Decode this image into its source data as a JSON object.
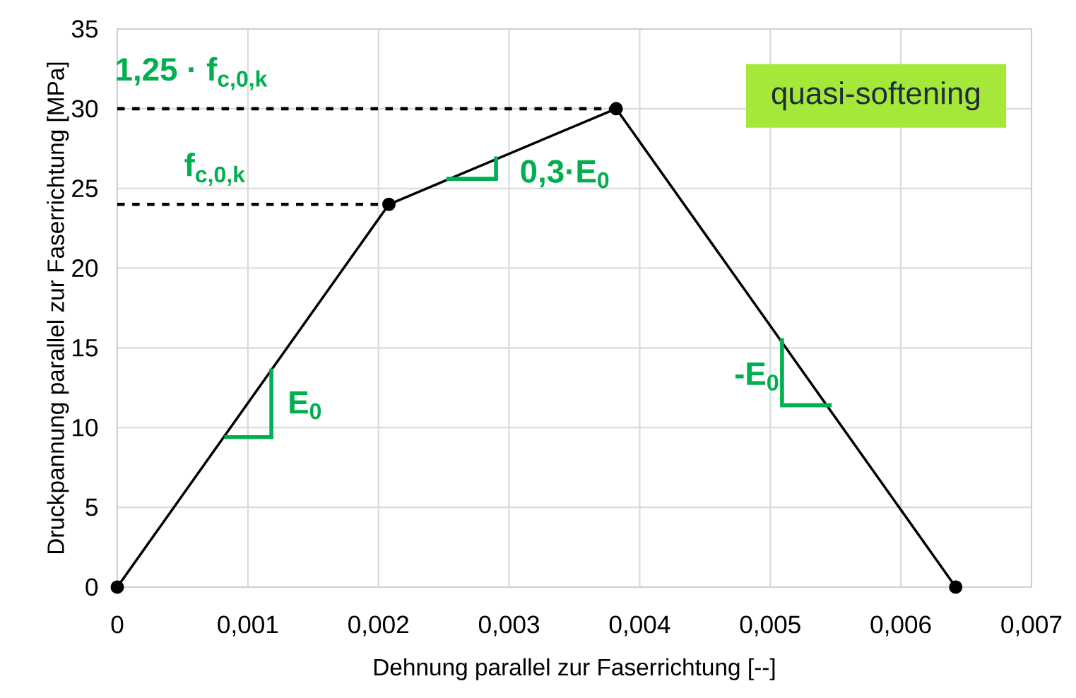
{
  "chart_data": {
    "type": "line",
    "xlabel": "Dehnung parallel zur Faserrichtung [--]",
    "ylabel": "Druckpannung parallel zur Faserrichtung   [MPa]",
    "xlim": [
      0,
      0.007
    ],
    "ylim": [
      0,
      35
    ],
    "xticks": [
      0,
      {
        "value": 0.001,
        "label": "0,001"
      },
      {
        "value": 0.002,
        "label": "0,002"
      },
      {
        "value": 0.003,
        "label": "0,003"
      },
      {
        "value": 0.004,
        "label": "0,004"
      },
      {
        "value": 0.005,
        "label": "0,005"
      },
      {
        "value": 0.006,
        "label": "0,006"
      },
      {
        "value": 0.007,
        "label": "0,007"
      }
    ],
    "yticks": [
      0,
      5,
      10,
      15,
      20,
      25,
      30,
      35
    ],
    "grid": true,
    "series": [
      {
        "type": "line",
        "color": "#000000",
        "marker": "circle",
        "line_style": "solid",
        "x": [
          0,
          0.00208,
          0.00382,
          0.00642
        ],
        "values": [
          0,
          24,
          30,
          0
        ]
      },
      {
        "type": "line",
        "color": "#000000",
        "marker": "none",
        "line_style": "dashed",
        "x": [
          0,
          0.00208
        ],
        "values": [
          24,
          24
        ]
      },
      {
        "type": "line",
        "color": "#000000",
        "marker": "none",
        "line_style": "dashed",
        "x": [
          0,
          0.00382
        ],
        "values": [
          30,
          30
        ]
      }
    ],
    "annotations": [
      "quasi-softening",
      "1,25 · f$_{c,0,k}$",
      "f$_{c,0,k}$",
      {
        "text": "0,3·E$_{0}$",
        "x": 0.0029,
        "y": 26.8
      },
      {
        "text": "E$_{0}$",
        "x": 0.00118,
        "y": 13.6
      },
      {
        "text": "-E$_{0}$",
        "x": 0.00509,
        "y": 15.3
      }
    ]
  }
}
